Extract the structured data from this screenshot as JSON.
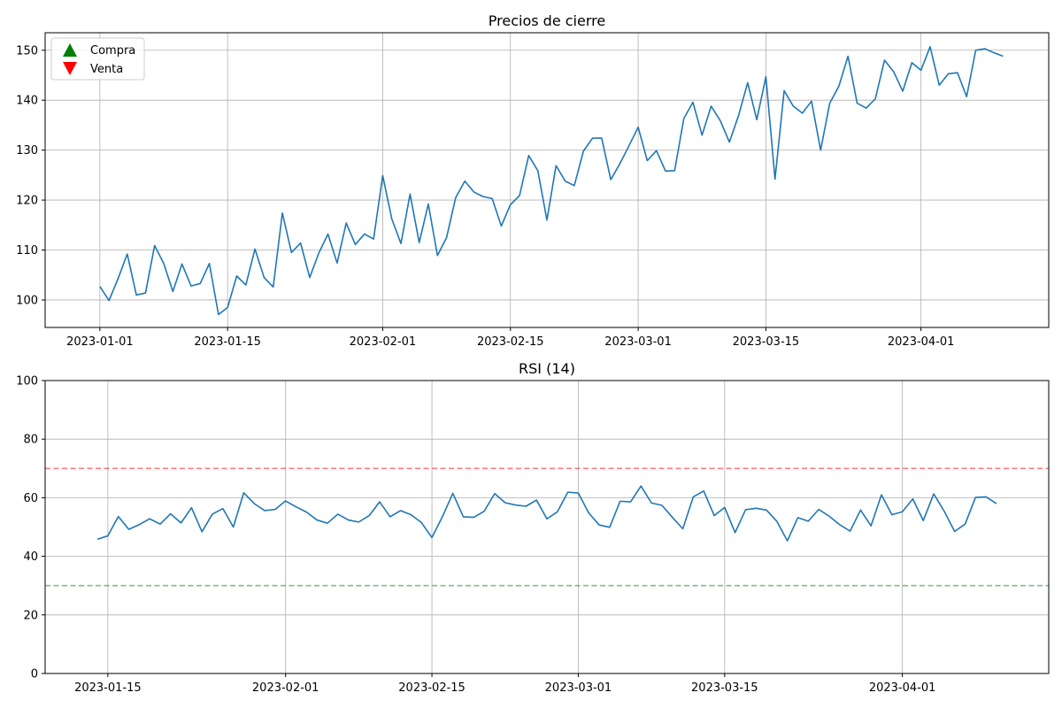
{
  "chart_data": [
    {
      "type": "line",
      "title": "Precios de cierre",
      "xlabel": "",
      "ylabel": "",
      "grid": true,
      "legend_placement": "upper-left",
      "x_start": "2023-01-01",
      "x_tick_labels": [
        "2023-01-01",
        "2023-01-15",
        "2023-02-01",
        "2023-02-15",
        "2023-03-01",
        "2023-03-15",
        "2023-04-01"
      ],
      "y_ticks": [
        100,
        110,
        120,
        130,
        140,
        150
      ],
      "xlim": [
        "2022-12-26",
        "2023-04-15"
      ],
      "ylim": [
        94.5,
        153.5
      ],
      "legend": [
        {
          "label": "Compra",
          "marker": "triangle-up",
          "color": "#008000"
        },
        {
          "label": "Venta",
          "marker": "triangle-down",
          "color": "#ff0000"
        }
      ],
      "series": [
        {
          "color": "#1f77b4",
          "values": [
            102.7,
            99.9,
            104.3,
            109.2,
            101.0,
            101.4,
            110.9,
            107.3,
            101.7,
            107.2,
            102.8,
            103.3,
            107.3,
            97.1,
            98.5,
            104.8,
            103.0,
            110.2,
            104.5,
            102.6,
            117.4,
            109.5,
            111.4,
            104.5,
            109.4,
            113.2,
            107.4,
            115.4,
            111.1,
            113.2,
            112.2,
            124.9,
            116.2,
            111.3,
            121.2,
            111.5,
            119.2,
            108.9,
            112.5,
            120.5,
            123.8,
            121.6,
            120.7,
            120.3,
            114.8,
            119.1,
            120.9,
            128.9,
            125.9,
            116.0,
            126.9,
            123.8,
            122.9,
            129.8,
            132.4,
            132.4,
            124.1,
            127.3,
            130.9,
            134.6,
            127.9,
            129.9,
            125.8,
            125.9,
            136.3,
            139.6,
            133.0,
            138.8,
            135.9,
            131.6,
            136.9,
            143.5,
            136.1,
            144.7,
            124.2,
            141.9,
            138.8,
            137.4,
            139.8,
            130.0,
            139.4,
            142.8,
            148.8,
            139.4,
            138.4,
            140.3,
            148.0,
            145.7,
            141.8,
            147.5,
            146.0,
            150.7,
            143.0,
            145.3,
            145.5,
            140.7,
            150.0,
            150.3,
            149.5,
            148.8
          ]
        }
      ]
    },
    {
      "type": "line",
      "title": "RSI (14)",
      "xlabel": "",
      "ylabel": "",
      "grid": true,
      "x_start": "2023-01-14",
      "x_tick_labels": [
        "2023-01-15",
        "2023-02-01",
        "2023-02-15",
        "2023-03-01",
        "2023-03-15",
        "2023-04-01"
      ],
      "y_ticks": [
        0,
        20,
        40,
        60,
        80,
        100
      ],
      "xlim": [
        "2023-01-09",
        "2023-04-15"
      ],
      "ylim": [
        0,
        100
      ],
      "reference_lines": [
        {
          "value": 70,
          "color": "#ff0000",
          "style": "dashed"
        },
        {
          "value": 30,
          "color": "#008000",
          "style": "dashed"
        }
      ],
      "series": [
        {
          "color": "#1f77b4",
          "values": [
            45.8,
            47.0,
            53.6,
            49.2,
            50.8,
            52.8,
            51.0,
            54.5,
            51.4,
            56.6,
            48.4,
            54.4,
            56.3,
            50.0,
            61.7,
            58.0,
            55.6,
            56.0,
            58.9,
            56.9,
            55.1,
            52.4,
            51.3,
            54.4,
            52.4,
            51.7,
            53.9,
            58.6,
            53.5,
            55.6,
            54.2,
            51.5,
            46.4,
            53.5,
            61.5,
            53.5,
            53.3,
            55.4,
            61.4,
            58.3,
            57.5,
            57.1,
            59.2,
            52.8,
            55.2,
            61.9,
            61.6,
            54.8,
            50.7,
            49.9,
            58.8,
            58.6,
            64.0,
            58.2,
            57.4,
            53.3,
            49.4,
            60.3,
            62.3,
            53.9,
            56.7,
            48.1,
            55.9,
            56.4,
            55.8,
            51.9,
            45.3,
            53.2,
            52.0,
            56.0,
            53.7,
            50.8,
            48.6,
            55.8,
            50.4,
            61.0,
            54.2,
            55.2,
            59.6,
            52.2,
            61.3,
            55.4,
            48.5,
            51.0,
            60.1,
            60.3,
            58.0
          ]
        }
      ]
    }
  ]
}
